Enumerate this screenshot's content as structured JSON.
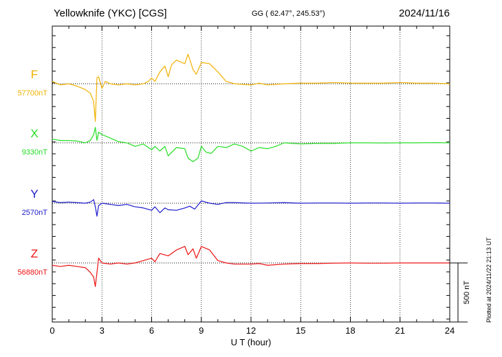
{
  "header": {
    "station": "Yellowknife (YKC)  [CGS]",
    "coords": "GG ( 62.47°, 245.53°)",
    "date": "2024/11/16"
  },
  "footer": {
    "plotted": "Plotted at 2024/11/22 21:13 UT"
  },
  "chart_data": {
    "type": "line",
    "xlabel": "U T (hour)",
    "xlim": [
      0,
      24
    ],
    "xticks": [
      "0",
      "3",
      "6",
      "9",
      "12",
      "15",
      "18",
      "21",
      "24"
    ],
    "scale_bar": {
      "label": "500 nT",
      "value_nT": 500
    },
    "series": [
      {
        "name": "F",
        "baseline_label": "57700nT",
        "baseline_nT": 57700,
        "color": "#f0b000",
        "points": [
          [
            0,
            57720
          ],
          [
            0.5,
            57690
          ],
          [
            1,
            57700
          ],
          [
            1.5,
            57680
          ],
          [
            2,
            57650
          ],
          [
            2.3,
            57620
          ],
          [
            2.5,
            57550
          ],
          [
            2.6,
            57380
          ],
          [
            2.7,
            57750
          ],
          [
            2.8,
            57760
          ],
          [
            3,
            57660
          ],
          [
            3.2,
            57720
          ],
          [
            3.5,
            57700
          ],
          [
            4,
            57690
          ],
          [
            4.5,
            57700
          ],
          [
            5,
            57690
          ],
          [
            5.5,
            57700
          ],
          [
            5.8,
            57720
          ],
          [
            6,
            57750
          ],
          [
            6.2,
            57720
          ],
          [
            6.5,
            57800
          ],
          [
            6.8,
            57850
          ],
          [
            7,
            57760
          ],
          [
            7.2,
            57860
          ],
          [
            7.5,
            57900
          ],
          [
            8,
            57870
          ],
          [
            8.2,
            57950
          ],
          [
            8.5,
            57820
          ],
          [
            8.7,
            57780
          ],
          [
            9,
            57880
          ],
          [
            9.5,
            57870
          ],
          [
            10,
            57800
          ],
          [
            10.5,
            57720
          ],
          [
            11,
            57700
          ],
          [
            12,
            57690
          ],
          [
            12.5,
            57705
          ],
          [
            13,
            57690
          ],
          [
            14,
            57700
          ],
          [
            15,
            57705
          ],
          [
            16,
            57705
          ],
          [
            17,
            57710
          ],
          [
            18,
            57705
          ],
          [
            19,
            57705
          ],
          [
            20,
            57705
          ],
          [
            21,
            57710
          ],
          [
            22,
            57705
          ],
          [
            23,
            57705
          ],
          [
            24,
            57700
          ]
        ]
      },
      {
        "name": "X",
        "baseline_label": "9330nT",
        "baseline_nT": 9330,
        "color": "#22dd22",
        "points": [
          [
            0,
            9360
          ],
          [
            0.5,
            9350
          ],
          [
            1,
            9350
          ],
          [
            1.5,
            9345
          ],
          [
            2,
            9330
          ],
          [
            2.3,
            9350
          ],
          [
            2.5,
            9400
          ],
          [
            2.6,
            9460
          ],
          [
            2.7,
            9350
          ],
          [
            2.8,
            9420
          ],
          [
            3,
            9400
          ],
          [
            3.5,
            9370
          ],
          [
            4,
            9340
          ],
          [
            4.5,
            9330
          ],
          [
            5,
            9300
          ],
          [
            5.5,
            9320
          ],
          [
            6,
            9270
          ],
          [
            6.2,
            9300
          ],
          [
            6.5,
            9260
          ],
          [
            6.8,
            9300
          ],
          [
            7,
            9220
          ],
          [
            7.5,
            9290
          ],
          [
            8,
            9280
          ],
          [
            8.2,
            9200
          ],
          [
            8.5,
            9170
          ],
          [
            8.8,
            9200
          ],
          [
            9,
            9300
          ],
          [
            9.3,
            9250
          ],
          [
            9.6,
            9240
          ],
          [
            10,
            9300
          ],
          [
            10.5,
            9290
          ],
          [
            11,
            9320
          ],
          [
            11.5,
            9300
          ],
          [
            12,
            9260
          ],
          [
            12.5,
            9290
          ],
          [
            13,
            9280
          ],
          [
            13.5,
            9300
          ],
          [
            14,
            9330
          ],
          [
            15,
            9320
          ],
          [
            16,
            9325
          ],
          [
            17,
            9325
          ],
          [
            18,
            9330
          ],
          [
            19,
            9330
          ],
          [
            20,
            9328
          ],
          [
            21,
            9330
          ],
          [
            22,
            9330
          ],
          [
            23,
            9332
          ],
          [
            24,
            9330
          ]
        ]
      },
      {
        "name": "Y",
        "baseline_label": "2570nT",
        "baseline_nT": 2570,
        "color": "#1a1acc",
        "points": [
          [
            0,
            2585
          ],
          [
            0.5,
            2575
          ],
          [
            1,
            2580
          ],
          [
            1.5,
            2575
          ],
          [
            2,
            2570
          ],
          [
            2.3,
            2580
          ],
          [
            2.5,
            2600
          ],
          [
            2.6,
            2540
          ],
          [
            2.7,
            2460
          ],
          [
            2.8,
            2550
          ],
          [
            3,
            2570
          ],
          [
            3.5,
            2560
          ],
          [
            4,
            2550
          ],
          [
            4.5,
            2560
          ],
          [
            5,
            2540
          ],
          [
            5.5,
            2530
          ],
          [
            6,
            2510
          ],
          [
            6.2,
            2540
          ],
          [
            6.5,
            2490
          ],
          [
            6.8,
            2530
          ],
          [
            7,
            2515
          ],
          [
            7.5,
            2510
          ],
          [
            8,
            2530
          ],
          [
            8.3,
            2545
          ],
          [
            8.6,
            2520
          ],
          [
            9,
            2590
          ],
          [
            9.5,
            2570
          ],
          [
            10,
            2560
          ],
          [
            10.5,
            2575
          ],
          [
            11,
            2575
          ],
          [
            12,
            2570
          ],
          [
            13,
            2572
          ],
          [
            14,
            2575
          ],
          [
            15,
            2570
          ],
          [
            16,
            2572
          ],
          [
            17,
            2572
          ],
          [
            18,
            2570
          ],
          [
            19,
            2572
          ],
          [
            20,
            2572
          ],
          [
            21,
            2570
          ],
          [
            22,
            2572
          ],
          [
            23,
            2572
          ],
          [
            24,
            2570
          ]
        ]
      },
      {
        "name": "Z",
        "baseline_label": "56880nT",
        "baseline_nT": 56880,
        "color": "#ee1111",
        "points": [
          [
            0,
            56860
          ],
          [
            0.5,
            56850
          ],
          [
            1,
            56860
          ],
          [
            1.5,
            56850
          ],
          [
            2,
            56840
          ],
          [
            2.3,
            56800
          ],
          [
            2.5,
            56760
          ],
          [
            2.6,
            56680
          ],
          [
            2.7,
            56800
          ],
          [
            2.8,
            56920
          ],
          [
            3,
            56880
          ],
          [
            3.5,
            56870
          ],
          [
            4,
            56880
          ],
          [
            4.5,
            56870
          ],
          [
            5,
            56880
          ],
          [
            5.5,
            56900
          ],
          [
            6,
            56920
          ],
          [
            6.2,
            56890
          ],
          [
            6.5,
            56960
          ],
          [
            7,
            56940
          ],
          [
            7.5,
            56990
          ],
          [
            8,
            57020
          ],
          [
            8.2,
            56950
          ],
          [
            8.5,
            57000
          ],
          [
            8.7,
            56920
          ],
          [
            9,
            57020
          ],
          [
            9.5,
            56990
          ],
          [
            10,
            56900
          ],
          [
            10.5,
            56880
          ],
          [
            11,
            56870
          ],
          [
            12,
            56870
          ],
          [
            12.5,
            56875
          ],
          [
            13,
            56860
          ],
          [
            14,
            56870
          ],
          [
            15,
            56875
          ],
          [
            16,
            56875
          ],
          [
            17,
            56878
          ],
          [
            18,
            56880
          ],
          [
            19,
            56878
          ],
          [
            20,
            56878
          ],
          [
            21,
            56880
          ],
          [
            22,
            56880
          ],
          [
            23,
            56880
          ],
          [
            24,
            56880
          ]
        ]
      }
    ]
  }
}
